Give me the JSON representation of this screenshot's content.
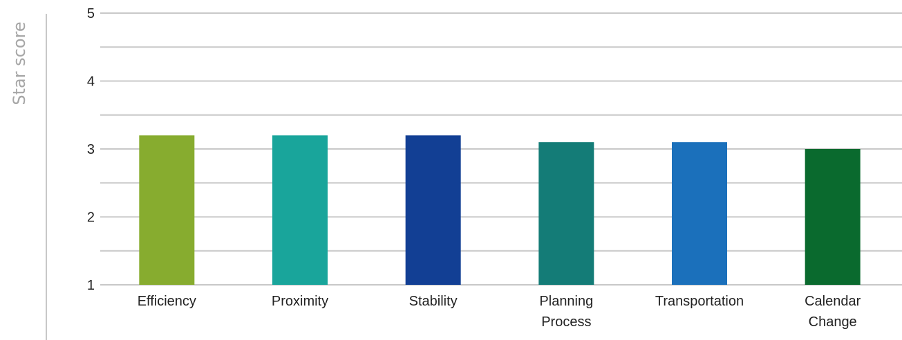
{
  "chart_data": {
    "type": "bar",
    "ylabel": "Star score",
    "categories": [
      "Efficiency",
      "Proximity",
      "Stability",
      "Planning Process",
      "Transportation",
      "Calendar Change"
    ],
    "category_lines": [
      [
        "Efficiency"
      ],
      [
        "Proximity"
      ],
      [
        "Stability"
      ],
      [
        "Planning",
        "Process"
      ],
      [
        "Transportation"
      ],
      [
        "Calendar",
        "Change"
      ]
    ],
    "values": [
      3.2,
      3.2,
      3.2,
      3.1,
      3.1,
      3.0
    ],
    "colors": [
      "#87ac2f",
      "#19a59b",
      "#123f94",
      "#147c77",
      "#1b70bb",
      "#0a6a2e"
    ],
    "ylim": [
      1,
      5
    ],
    "yticks": [
      1,
      2,
      3,
      4,
      5
    ],
    "minor_gridlines": [
      1.5,
      2.5,
      3.5,
      4.5
    ],
    "grid": true,
    "grid_color": "#c8c8c8",
    "axis_label_color": "#a6a6a6"
  }
}
